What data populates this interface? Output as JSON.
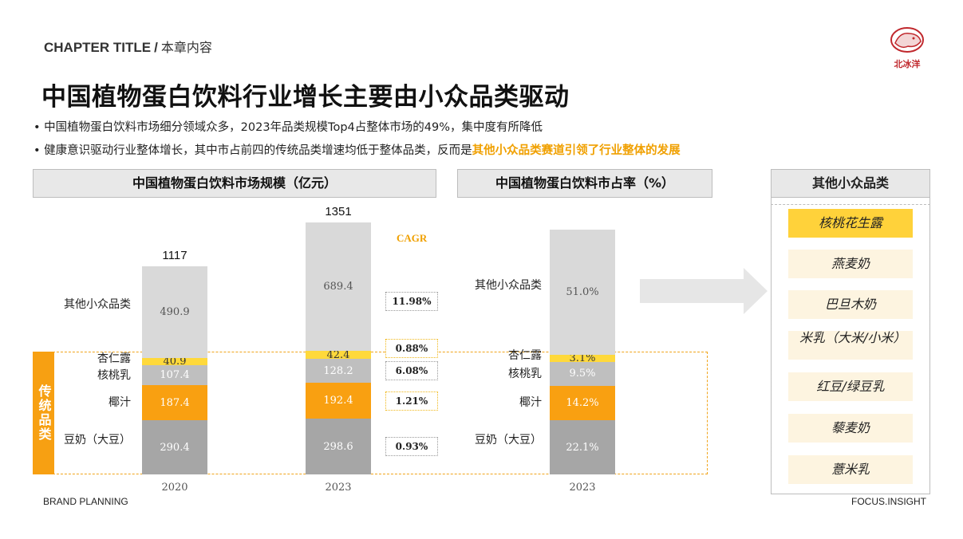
{
  "header": {
    "chapter": "CHAPTER TITLE",
    "slash": "/",
    "chapter_sub": "本章内容",
    "logo_text": "北冰洋"
  },
  "headline": "中国植物蛋白饮料行业增长主要由小众品类驱动",
  "bullets": [
    {
      "text": "•  中国植物蛋白饮料市场细分领域众多，2023年品类规模Top4占整体市场的49%，集中度有所降低"
    },
    {
      "text": "•  健康意识驱动行业整体增长，其中市占前四的传统品类增速均低于整体品类，反而是",
      "highlight": "其他小众品类赛道引领了行业整体的发展"
    }
  ],
  "sections": {
    "left": "中国植物蛋白饮料市场规模（亿元）",
    "middle": "中国植物蛋白饮料市占率（%）",
    "right": "其他小众品类"
  },
  "traditional_label": "传统品类",
  "cagr_title": "CAGR",
  "colors": {
    "other": "#d9d9d9",
    "xingren": "#ffd93b",
    "hetao": "#bfbfbf",
    "yezhi": "#f9a011",
    "doulai": "#a6a6a6",
    "accent": "#f0a000"
  },
  "chart_data": [
    {
      "type": "bar",
      "stacked": true,
      "title": "中国植物蛋白饮料市场规模（亿元）",
      "categories": [
        "2020",
        "2023"
      ],
      "totals": [
        "1117",
        "1351"
      ],
      "series": [
        {
          "name": "豆奶（大豆）",
          "values": [
            290.4,
            298.6
          ],
          "labels": [
            "290.4",
            "298.6"
          ]
        },
        {
          "name": "椰汁",
          "values": [
            187.4,
            192.4
          ],
          "labels": [
            "187.4",
            "192.4"
          ]
        },
        {
          "name": "核桃乳",
          "values": [
            107.4,
            128.2
          ],
          "labels": [
            "107.4",
            "128.2"
          ]
        },
        {
          "name": "杏仁露",
          "values": [
            40.9,
            42.4
          ],
          "labels": [
            "40.9",
            "42.4"
          ]
        },
        {
          "name": "其他小众品类",
          "values": [
            490.9,
            689.4
          ],
          "labels": [
            "490.9",
            "689.4"
          ]
        }
      ],
      "cagr": [
        "0.93%",
        "1.21%",
        "6.08%",
        "0.88%",
        "11.98%"
      ]
    },
    {
      "type": "bar",
      "stacked": true,
      "title": "中国植物蛋白饮料市占率（%）",
      "categories": [
        "2023"
      ],
      "series": [
        {
          "name": "豆奶（大豆）",
          "values": [
            22.1
          ],
          "labels": [
            "22.1%"
          ]
        },
        {
          "name": "椰汁",
          "values": [
            14.2
          ],
          "labels": [
            "14.2%"
          ]
        },
        {
          "name": "核桃乳",
          "values": [
            9.5
          ],
          "labels": [
            "9.5%"
          ]
        },
        {
          "name": "杏仁露",
          "values": [
            3.1
          ],
          "labels": [
            "3.1%"
          ]
        },
        {
          "name": "其他小众品类",
          "values": [
            51.0
          ],
          "labels": [
            "51.0%"
          ]
        }
      ]
    }
  ],
  "minor_categories": [
    "核桃花生露",
    "燕麦奶",
    "巴旦木奶",
    "米乳（大米/小米）",
    "红豆/绿豆乳",
    "藜麦奶",
    "薏米乳"
  ],
  "footer": {
    "left": "BRAND PLANNING",
    "right": "FOCUS.INSIGHT"
  }
}
